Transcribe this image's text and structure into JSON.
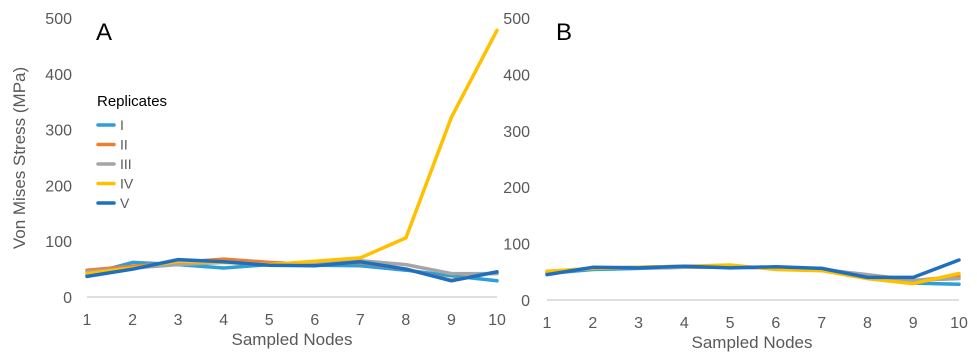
{
  "ylabel": "Von Mises Stress (MPa)",
  "legend": {
    "title": "Replicates",
    "items": [
      {
        "label": "I",
        "color": "#2e9fd6"
      },
      {
        "label": "II",
        "color": "#ed7d31"
      },
      {
        "label": "III",
        "color": "#a5a5a5"
      },
      {
        "label": "IV",
        "color": "#ffc000"
      },
      {
        "label": "V",
        "color": "#1f6fc0"
      }
    ]
  },
  "chart_data": [
    {
      "type": "line",
      "panel": "A",
      "xlabel": "Sampled Nodes",
      "ylabel": "Von Mises Stress (MPa)",
      "x": [
        1,
        2,
        3,
        4,
        5,
        6,
        7,
        8,
        9,
        10
      ],
      "xticks": [
        "1",
        "2",
        "3",
        "4",
        "5",
        "6",
        "7",
        "8",
        "9",
        "10"
      ],
      "yticks": [
        "0",
        "100",
        "200",
        "300",
        "400",
        "500"
      ],
      "ylim": [
        0,
        500
      ],
      "grid": false,
      "legend_position": "left",
      "series": [
        {
          "name": "I",
          "color": "#2e9fd6",
          "values": [
            40,
            62,
            58,
            52,
            58,
            57,
            56,
            48,
            38,
            29
          ]
        },
        {
          "name": "II",
          "color": "#ed7d31",
          "values": [
            48,
            55,
            62,
            68,
            62,
            58,
            62,
            50,
            30,
            45
          ]
        },
        {
          "name": "III",
          "color": "#a5a5a5",
          "values": [
            45,
            52,
            58,
            62,
            58,
            60,
            65,
            58,
            42,
            42
          ]
        },
        {
          "name": "IV",
          "color": "#ffc000",
          "values": [
            42,
            52,
            64,
            62,
            58,
            64,
            70,
            106,
            322,
            478
          ]
        },
        {
          "name": "V",
          "color": "#1f6fc0",
          "values": [
            37,
            50,
            67,
            63,
            57,
            56,
            63,
            50,
            29,
            45
          ]
        }
      ]
    },
    {
      "type": "line",
      "panel": "B",
      "xlabel": "Sampled Nodes",
      "ylabel": "",
      "x": [
        1,
        2,
        3,
        4,
        5,
        6,
        7,
        8,
        9,
        10
      ],
      "xticks": [
        "1",
        "2",
        "3",
        "4",
        "5",
        "6",
        "7",
        "8",
        "9",
        "10"
      ],
      "yticks": [
        "0",
        "100",
        "200",
        "300",
        "400",
        "500"
      ],
      "ylim": [
        0,
        500
      ],
      "grid": false,
      "series": [
        {
          "name": "I",
          "color": "#2e9fd6",
          "values": [
            47,
            54,
            56,
            58,
            58,
            57,
            56,
            40,
            30,
            28
          ]
        },
        {
          "name": "II",
          "color": "#ed7d31",
          "values": [
            48,
            57,
            58,
            60,
            60,
            56,
            55,
            42,
            34,
            42
          ]
        },
        {
          "name": "III",
          "color": "#a5a5a5",
          "values": [
            50,
            56,
            57,
            58,
            58,
            58,
            54,
            45,
            35,
            38
          ]
        },
        {
          "name": "IV",
          "color": "#ffc000",
          "values": [
            51,
            56,
            58,
            60,
            62,
            54,
            52,
            38,
            29,
            47
          ]
        },
        {
          "name": "V",
          "color": "#1f6fc0",
          "values": [
            45,
            58,
            57,
            60,
            57,
            59,
            56,
            40,
            40,
            71
          ]
        }
      ]
    }
  ]
}
